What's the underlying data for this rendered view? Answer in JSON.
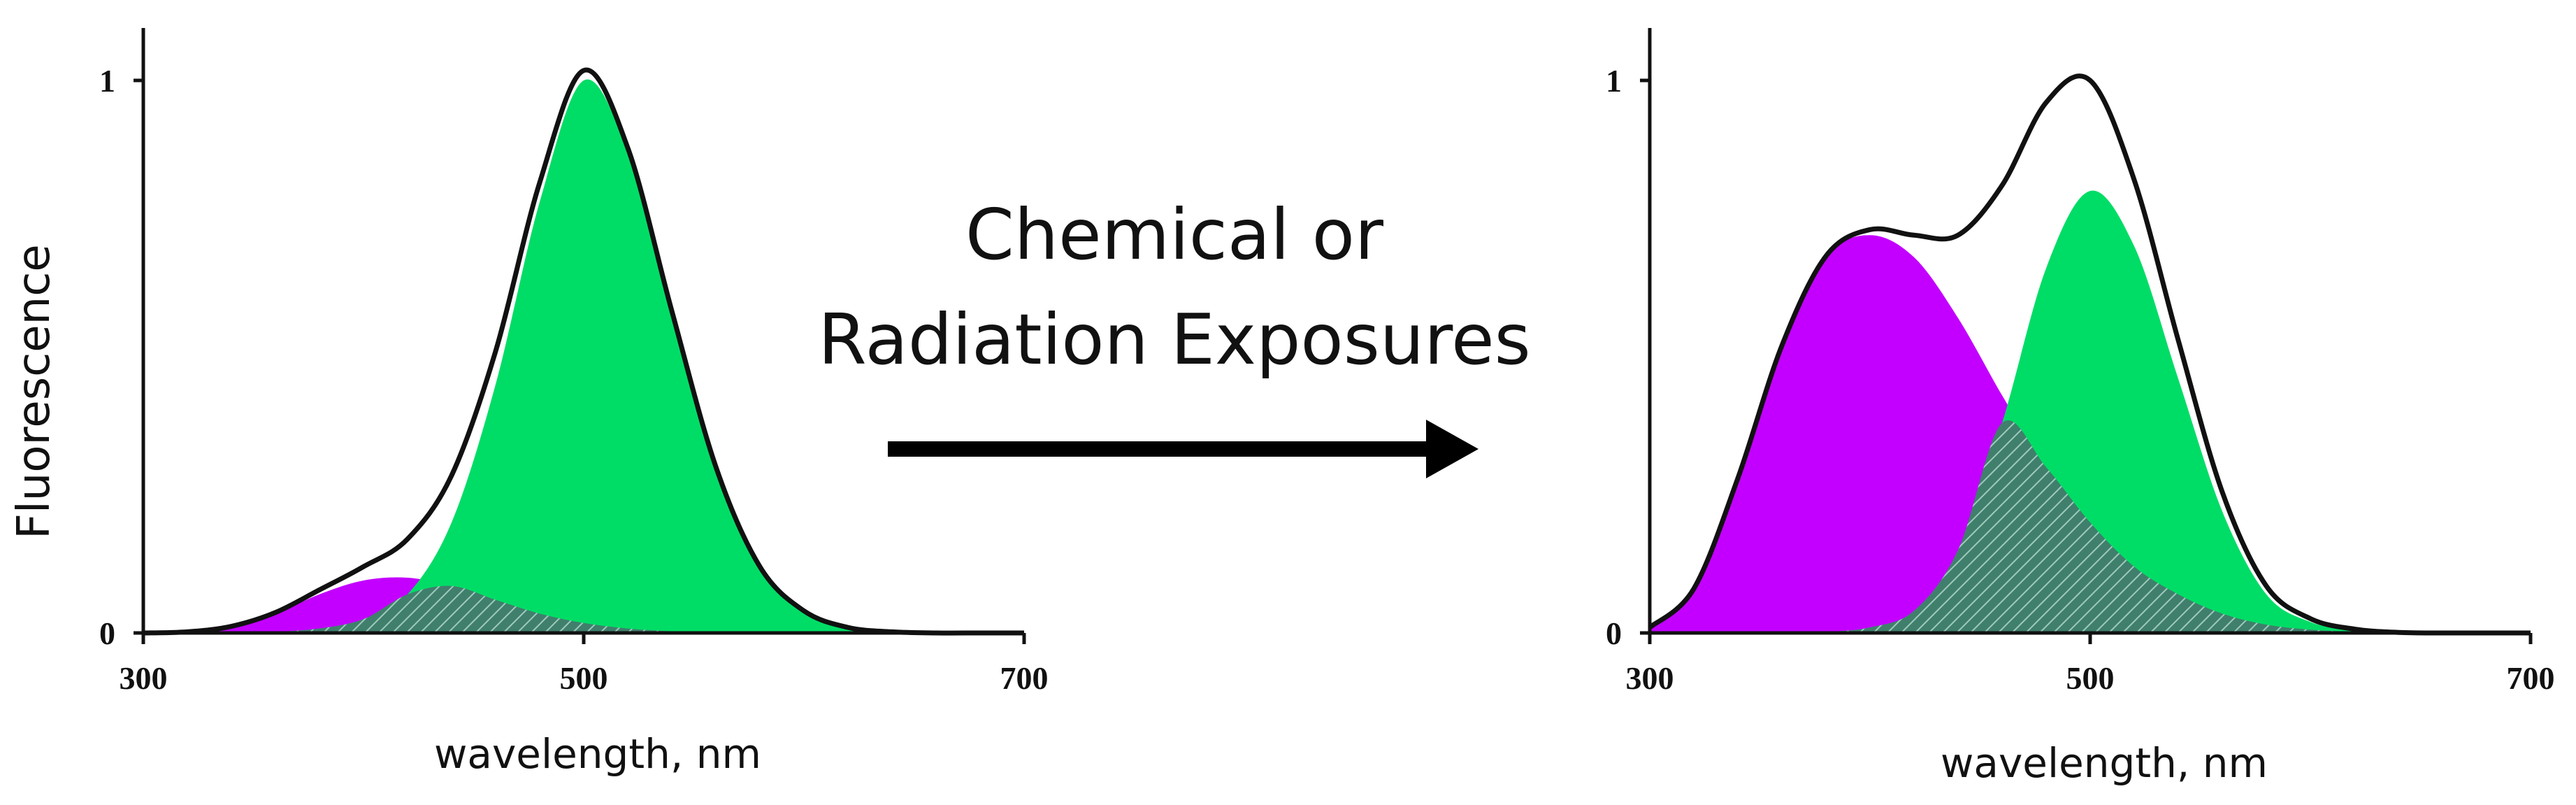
{
  "figure": {
    "caption_line1": "Chemical or",
    "caption_line2": "Radiation Exposures"
  },
  "colors": {
    "violet": "#c300ff",
    "green": "#00dd66",
    "overlap": "#3f7f6c",
    "total": "#111111",
    "axis": "#111111"
  },
  "chart_data": [
    {
      "type": "area",
      "name_hint": "before exposure",
      "x": [
        300,
        320,
        340,
        360,
        380,
        400,
        420,
        440,
        460,
        480,
        500,
        520,
        540,
        560,
        580,
        600,
        620,
        640,
        660,
        680,
        700
      ],
      "series": [
        {
          "color_key": "violet",
          "values": [
            0,
            0.002,
            0.012,
            0.035,
            0.07,
            0.095,
            0.1,
            0.085,
            0.06,
            0.035,
            0.018,
            0.008,
            0.003,
            0.001,
            0,
            0,
            0,
            0,
            0,
            0,
            0
          ]
        },
        {
          "color_key": "green",
          "values": [
            0,
            0,
            0,
            0.002,
            0.008,
            0.025,
            0.07,
            0.2,
            0.45,
            0.78,
            1.0,
            0.87,
            0.58,
            0.3,
            0.12,
            0.04,
            0.01,
            0.002,
            0,
            0,
            0
          ]
        }
      ],
      "total": [
        0,
        0.002,
        0.012,
        0.037,
        0.078,
        0.12,
        0.17,
        0.285,
        0.51,
        0.815,
        1.018,
        0.878,
        0.583,
        0.301,
        0.12,
        0.04,
        0.01,
        0.002,
        0,
        0,
        0
      ],
      "xlabel": "wavelength, nm",
      "ylabel": "Fluorescence",
      "xticks": [
        "300",
        "500",
        "700"
      ],
      "yticks": [
        "0",
        "1"
      ],
      "xlim": [
        300,
        700
      ],
      "ylim": [
        0,
        1.1
      ]
    },
    {
      "type": "area",
      "name_hint": "after exposure",
      "x": [
        300,
        320,
        340,
        360,
        380,
        400,
        420,
        440,
        460,
        480,
        500,
        520,
        540,
        560,
        580,
        600,
        620,
        640,
        660,
        680,
        700
      ],
      "series": [
        {
          "color_key": "violet",
          "values": [
            0.01,
            0.08,
            0.28,
            0.52,
            0.68,
            0.72,
            0.68,
            0.57,
            0.43,
            0.3,
            0.2,
            0.12,
            0.07,
            0.035,
            0.015,
            0.006,
            0.002,
            0,
            0,
            0,
            0
          ]
        },
        {
          "color_key": "green",
          "values": [
            0,
            0,
            0,
            0,
            0.002,
            0.01,
            0.04,
            0.15,
            0.38,
            0.66,
            0.8,
            0.7,
            0.46,
            0.22,
            0.07,
            0.02,
            0.005,
            0.001,
            0,
            0,
            0
          ]
        }
      ],
      "total": [
        0.01,
        0.08,
        0.28,
        0.52,
        0.682,
        0.73,
        0.72,
        0.72,
        0.81,
        0.96,
        1.0,
        0.82,
        0.53,
        0.255,
        0.085,
        0.026,
        0.007,
        0.001,
        0,
        0,
        0
      ],
      "xlabel": "wavelength, nm",
      "ylabel": "",
      "xticks": [
        "300",
        "500",
        "700"
      ],
      "yticks": [
        "0",
        "1"
      ],
      "xlim": [
        300,
        700
      ],
      "ylim": [
        0,
        1.1
      ]
    }
  ]
}
